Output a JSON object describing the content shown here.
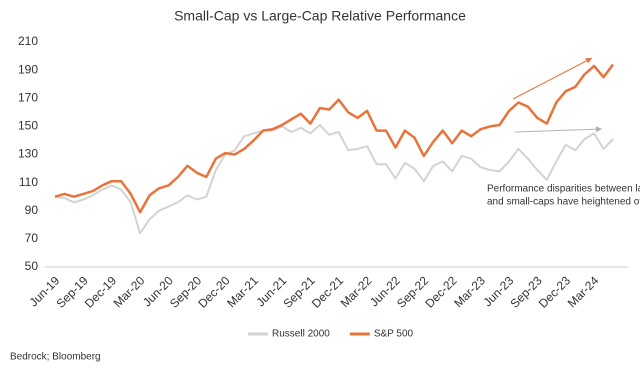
{
  "chart_data": {
    "type": "line",
    "title": "Small-Cap vs Large-Cap Relative Performance",
    "categories": [
      "Jun-19",
      null,
      null,
      "Sep-19",
      null,
      null,
      "Dec-19",
      null,
      null,
      "Mar-20",
      null,
      null,
      "Jun-20",
      null,
      null,
      "Sep-20",
      null,
      null,
      "Dec-20",
      null,
      null,
      "Mar-21",
      null,
      null,
      "Jun-21",
      null,
      null,
      "Sep-21",
      null,
      null,
      "Dec-21",
      null,
      null,
      "Mar-22",
      null,
      null,
      "Jun-22",
      null,
      null,
      "Sep-22",
      null,
      null,
      "Dec-22",
      null,
      null,
      "Mar-23",
      null,
      null,
      "Jun-23",
      null,
      null,
      "Sep-23",
      null,
      null,
      "Dec-23",
      null,
      null,
      "Mar-24",
      null,
      null
    ],
    "series": [
      {
        "name": "Russell 2000",
        "color": "#d3d3d3",
        "values": [
          100,
          99,
          96,
          98,
          101,
          105,
          108,
          105,
          96,
          74,
          84,
          90,
          93,
          96,
          101,
          98,
          100,
          119,
          130,
          133,
          143,
          145,
          147,
          147,
          150,
          146,
          149,
          145,
          151,
          144,
          146,
          133,
          134,
          136,
          123,
          123,
          113,
          124,
          120,
          111,
          122,
          125,
          118,
          129,
          127,
          121,
          119,
          118,
          125,
          134,
          127,
          119,
          112,
          125,
          137,
          133,
          141,
          145,
          134,
          141
        ]
      },
      {
        "name": "S&P 500",
        "color": "#e8743b",
        "values": [
          100,
          102,
          100,
          102,
          104,
          108,
          111,
          111,
          102,
          89,
          101,
          106,
          108,
          114,
          122,
          117,
          114,
          127,
          131,
          130,
          134,
          140,
          147,
          148,
          151,
          155,
          159,
          152,
          163,
          162,
          169,
          160,
          156,
          161,
          147,
          147,
          135,
          147,
          142,
          129,
          139,
          147,
          138,
          147,
          143,
          148,
          150,
          151,
          161,
          167,
          164,
          156,
          152,
          167,
          175,
          178,
          187,
          193,
          185,
          194
        ]
      }
    ],
    "ylim": [
      50,
      210
    ],
    "yticks": [
      50,
      70,
      90,
      110,
      130,
      150,
      170,
      190,
      210
    ],
    "grid": false,
    "annotation": [
      "Performance disparities between large-",
      "and small-caps have heightened of late"
    ],
    "source": "Bedrock; Bloomberg"
  }
}
